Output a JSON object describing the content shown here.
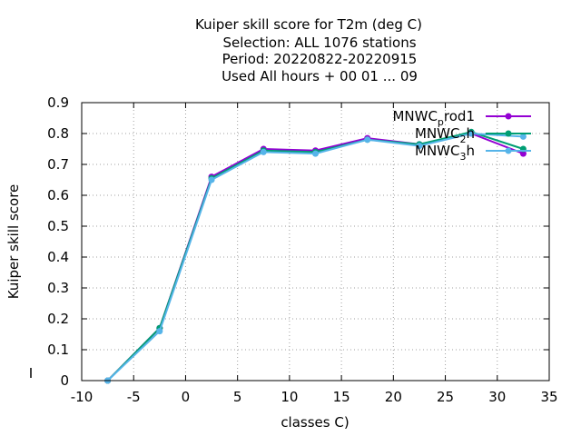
{
  "chart_data": {
    "type": "line",
    "title_lines": [
      "Kuiper skill score  for T2m (deg C)",
      "Selection: ALL   1076 stations",
      "Period: 20220822-20220915",
      "Used  All hours  + 00 01 ... 09"
    ],
    "xlabel": "classes C)",
    "ylabel": "Kuiper skill score",
    "xlim": [
      -10,
      35
    ],
    "ylim": [
      0,
      0.9
    ],
    "xticks": [
      "-10",
      "-5",
      "0",
      "5",
      "10",
      "15",
      "20",
      "25",
      "30",
      "35"
    ],
    "yticks": [
      "0",
      "0.1",
      "0.2",
      "0.3",
      "0.4",
      "0.5",
      "0.6",
      "0.7",
      "0.8",
      "0.9"
    ],
    "grid": true,
    "legend_position": "top-right",
    "x": [
      -7.5,
      -2.5,
      2.5,
      7.5,
      12.5,
      17.5,
      22.5,
      27.5,
      32.5
    ],
    "series": [
      {
        "name": "MNWC",
        "name_sub": "p",
        "name_rest": "rod1",
        "color": "#9400d3",
        "marker": "circle",
        "values": [
          0.0,
          0.17,
          0.66,
          0.75,
          0.745,
          0.785,
          0.765,
          0.8,
          0.735
        ]
      },
      {
        "name": "MNWC",
        "name_sub": "2",
        "name_rest": "h",
        "color": "#009e73",
        "marker": "circle",
        "values": [
          0.0,
          0.17,
          0.655,
          0.745,
          0.74,
          0.78,
          0.765,
          0.805,
          0.75
        ]
      },
      {
        "name": "MNWC",
        "name_sub": "3",
        "name_rest": "h",
        "color": "#56b4e9",
        "marker": "circle",
        "values": [
          0.0,
          0.16,
          0.65,
          0.74,
          0.735,
          0.78,
          0.76,
          0.8,
          0.79
        ]
      }
    ]
  }
}
